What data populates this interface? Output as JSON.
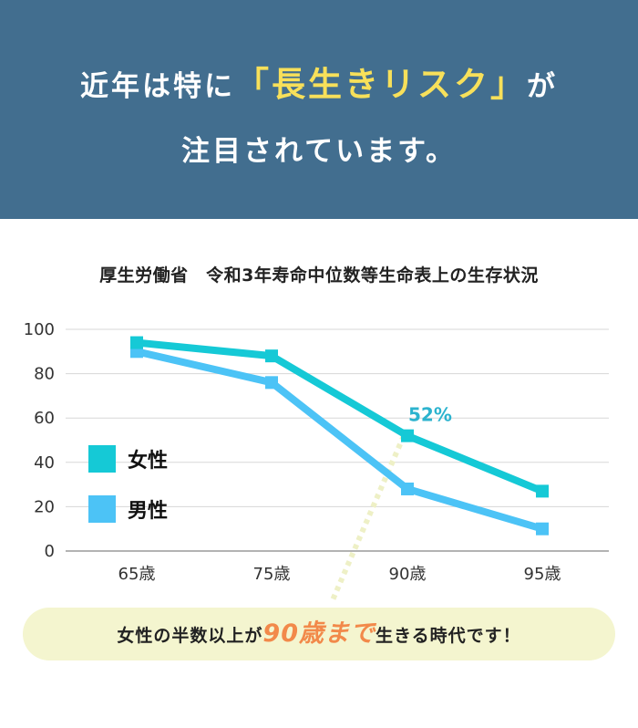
{
  "headline": {
    "line1_pre": "近年は特に",
    "line1_highlight": "「長生きリスク」",
    "line1_post": "が",
    "line2": "注目されています。",
    "highlight_color": "#f7e05a"
  },
  "chart_data": {
    "type": "line",
    "title": "厚生労働省　令和3年寿命中位数等生命表上の生存状況",
    "categories": [
      "65歳",
      "75歳",
      "90歳",
      "95歳"
    ],
    "series": [
      {
        "name": "女性",
        "values": [
          94,
          88,
          52,
          27
        ],
        "color": "#15c9d6"
      },
      {
        "name": "男性",
        "values": [
          90,
          76,
          28,
          10
        ],
        "color": "#4cc3f6"
      }
    ],
    "yticks": [
      0,
      20,
      40,
      60,
      80,
      100
    ],
    "ylim": [
      0,
      100
    ],
    "grid": true,
    "legend_position": "left",
    "annotation": {
      "text": "52%",
      "category": "90歳",
      "series": "女性",
      "color": "#2cb3ce"
    }
  },
  "banner": {
    "pre": "女性の半数以上が",
    "highlight": "90歳まで",
    "post": "生きる時代です！",
    "highlight_color": "#f2894a"
  }
}
